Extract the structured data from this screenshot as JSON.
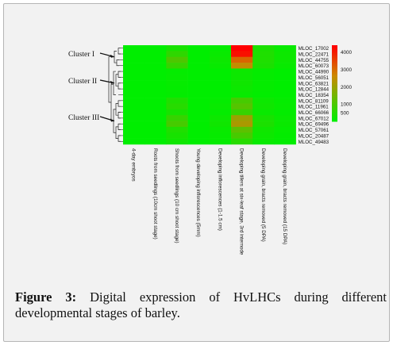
{
  "figure": {
    "label": "Figure 3:",
    "caption": "Digital expression of HvLHCs during different developmental stages of barley."
  },
  "chart_data": {
    "type": "heatmap",
    "title": "",
    "genes": [
      "MLOC_17002",
      "MLOC_22471",
      "MLOC_44755",
      "MLOC_60073",
      "MLOC_44990",
      "MLOC_56051",
      "MLOC_63821",
      "MLOC_12844",
      "MLOC_18354",
      "MLOC_81109",
      "MLOC_11961",
      "MLOC_66066",
      "MLOC_67012",
      "MLOC_69496",
      "MLOC_57061",
      "MLOC_20487",
      "MLOC_49483"
    ],
    "samples": [
      "4-day embryos",
      "Roots from seedlings (10cm shoot stage)",
      "Shoots from seedlings (10 cm shoot stage)",
      "Young developing inflorescences (5mm)",
      "Developing inflorescences (1-1.5 cm)",
      "Developing tillers at six-leaf stage, 3rd internode",
      "Developing grain, bracts removed (5 DPA)",
      "Developing grain, bracts removed (15 DPA)"
    ],
    "values": [
      [
        0,
        0,
        300,
        0,
        50,
        4400,
        350,
        100
      ],
      [
        0,
        0,
        600,
        0,
        100,
        4200,
        400,
        150
      ],
      [
        0,
        0,
        1000,
        0,
        150,
        3100,
        400,
        150
      ],
      [
        0,
        0,
        700,
        0,
        100,
        2500,
        350,
        100
      ],
      [
        0,
        0,
        50,
        0,
        0,
        150,
        50,
        0
      ],
      [
        0,
        0,
        80,
        0,
        0,
        150,
        50,
        0
      ],
      [
        0,
        0,
        60,
        0,
        0,
        200,
        50,
        0
      ],
      [
        0,
        0,
        50,
        0,
        0,
        150,
        50,
        0
      ],
      [
        0,
        0,
        40,
        0,
        0,
        100,
        30,
        0
      ],
      [
        0,
        0,
        400,
        0,
        50,
        900,
        150,
        50
      ],
      [
        0,
        0,
        500,
        0,
        100,
        1100,
        200,
        80
      ],
      [
        0,
        0,
        300,
        0,
        50,
        700,
        120,
        40
      ],
      [
        0,
        0,
        700,
        0,
        150,
        2000,
        300,
        100
      ],
      [
        0,
        0,
        900,
        0,
        200,
        2200,
        350,
        120
      ],
      [
        0,
        0,
        400,
        0,
        100,
        1200,
        200,
        60
      ],
      [
        0,
        0,
        300,
        0,
        80,
        900,
        150,
        40
      ],
      [
        0,
        0,
        200,
        0,
        60,
        500,
        100,
        30
      ]
    ],
    "color_scale": {
      "ticks": [
        500,
        1000,
        2000,
        3000,
        4000
      ],
      "min": 0,
      "max": 4400,
      "low_color": "#00ee00",
      "mid_color": "#cc8800",
      "high_color": "#ff0000"
    },
    "clusters": [
      {
        "label": "Cluster I",
        "rows": [
          0,
          3
        ]
      },
      {
        "label": "Cluster II",
        "rows": [
          4,
          8
        ]
      },
      {
        "label": "Cluster III",
        "rows": [
          9,
          16
        ]
      }
    ]
  }
}
